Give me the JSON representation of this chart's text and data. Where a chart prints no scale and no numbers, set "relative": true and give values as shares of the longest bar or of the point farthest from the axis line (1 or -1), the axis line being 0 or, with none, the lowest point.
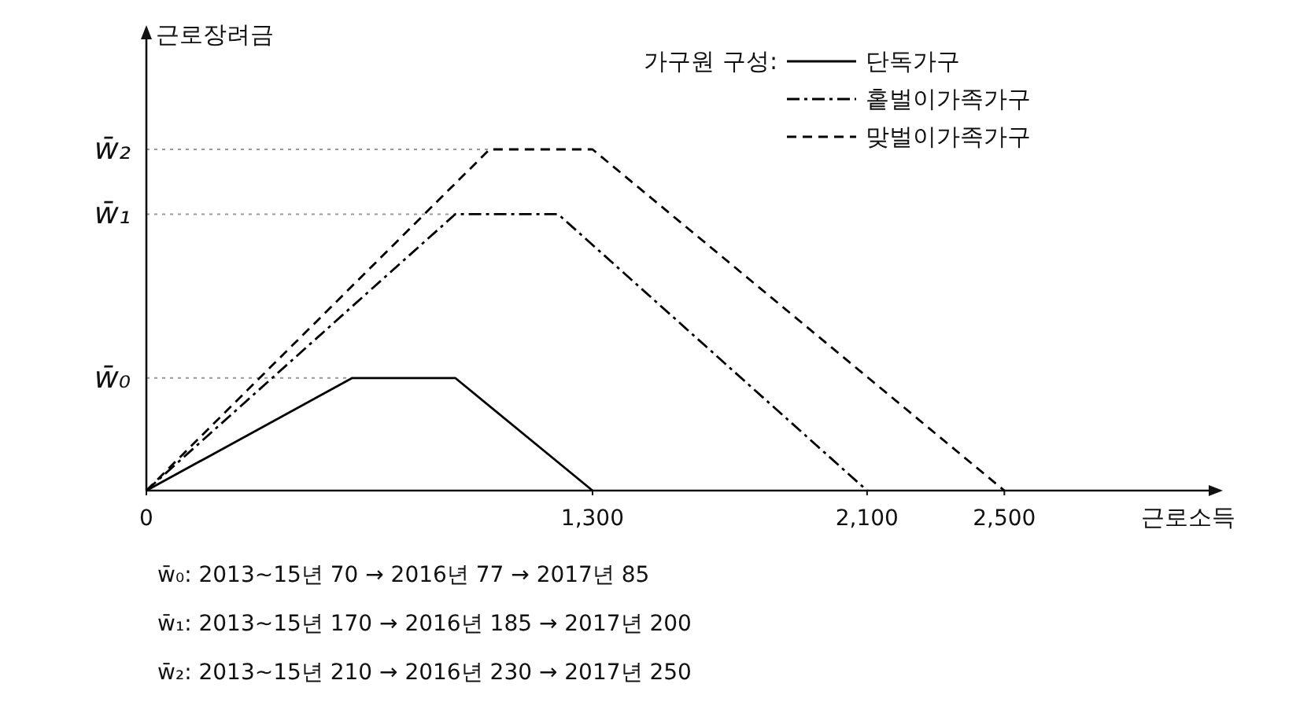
{
  "chart_data": {
    "type": "line",
    "relative": true,
    "ylabel": "근로장려금",
    "xlabel": "근로소득",
    "legend_title": "가구원 구성:",
    "xlim": [
      0,
      3100
    ],
    "xticks": [
      0,
      {
        "value": 1300,
        "label": "1,300"
      },
      {
        "value": 2100,
        "label": "2,100"
      },
      {
        "value": 2500,
        "label": "2,500"
      }
    ],
    "series": [
      {
        "name": "단독가구",
        "color": "#000000",
        "line_style": "solid",
        "x": [
          0,
          600,
          900,
          1300
        ],
        "values": [
          0,
          0.33,
          0.33,
          0
        ]
      },
      {
        "name": "홑벌이가족가구",
        "color": "#000000",
        "line_style": "dash-dot",
        "x": [
          0,
          900,
          1200,
          2100
        ],
        "values": [
          0,
          0.81,
          0.81,
          0
        ]
      },
      {
        "name": "맞벌이가족가구",
        "color": "#000000",
        "line_style": "dashed",
        "x": [
          0,
          1000,
          1300,
          2500
        ],
        "values": [
          0,
          1,
          1,
          0
        ]
      }
    ],
    "ref_lines": [
      {
        "axis": "y",
        "value": 0.33,
        "label": "w̄₀",
        "color": "#999999",
        "line_style": "dotted"
      },
      {
        "axis": "y",
        "value": 0.81,
        "label": "w̄₁",
        "color": "#999999",
        "line_style": "dotted"
      },
      {
        "axis": "y",
        "value": 1,
        "label": "w̄₂",
        "color": "#999999",
        "line_style": "dotted"
      }
    ],
    "legend": "top right",
    "grid": false,
    "marker": "none",
    "annotations": [
      "w̄₀: 2013~15년  70 → 2016년  77 → 2017년  85",
      "w̄₁: 2013~15년 170 → 2016년 185 → 2017년 200",
      "w̄₂: 2013~15년 210 → 2016년 230 → 2017년 250"
    ]
  }
}
